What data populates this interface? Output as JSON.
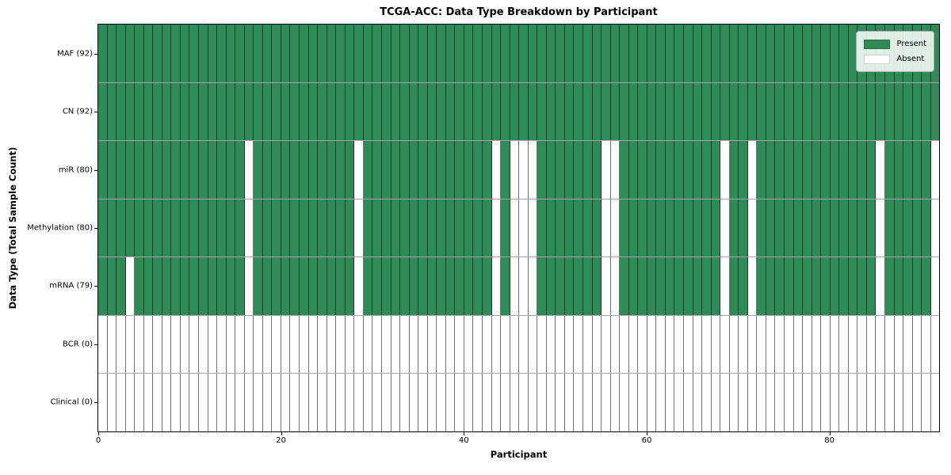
{
  "chart_data": {
    "type": "heatmap",
    "title": "TCGA-ACC: Data Type Breakdown by Participant",
    "xlabel": "Participant",
    "ylabel": "Data Type (Total Sample Count)",
    "n_participants": 92,
    "x_ticks": [
      0,
      20,
      40,
      60,
      80
    ],
    "x_range": [
      0,
      92
    ],
    "grid": true,
    "legend_position": "upper right",
    "rows": [
      {
        "label": "MAF (92)",
        "present_count": 92,
        "absent_participants": []
      },
      {
        "label": "CN (92)",
        "present_count": 92,
        "absent_participants": []
      },
      {
        "label": "miR (80)",
        "present_count": 80,
        "absent_participants": [
          16,
          28,
          43,
          45,
          46,
          47,
          55,
          56,
          68,
          71,
          85,
          91
        ]
      },
      {
        "label": "Methylation (80)",
        "present_count": 80,
        "absent_participants": [
          16,
          28,
          43,
          45,
          46,
          47,
          55,
          56,
          68,
          71,
          85,
          91
        ]
      },
      {
        "label": "mRNA (79)",
        "present_count": 79,
        "absent_participants": [
          3,
          16,
          28,
          43,
          45,
          46,
          47,
          55,
          56,
          68,
          71,
          85,
          91
        ]
      },
      {
        "label": "BCR (0)",
        "present_count": 0,
        "absent_participants": "all"
      },
      {
        "label": "Clinical (0)",
        "present_count": 0,
        "absent_participants": "all"
      }
    ],
    "legend": [
      {
        "label": "Present",
        "color": "#2e8b57"
      },
      {
        "label": "Absent",
        "color": "#ffffff"
      }
    ],
    "colors": {
      "present": "#2e8b57",
      "absent": "#ffffff",
      "grid_line": "rgba(0,0,0,0.55)",
      "row_line": "rgba(0,0,0,0.35)",
      "spine": "#000000"
    }
  }
}
